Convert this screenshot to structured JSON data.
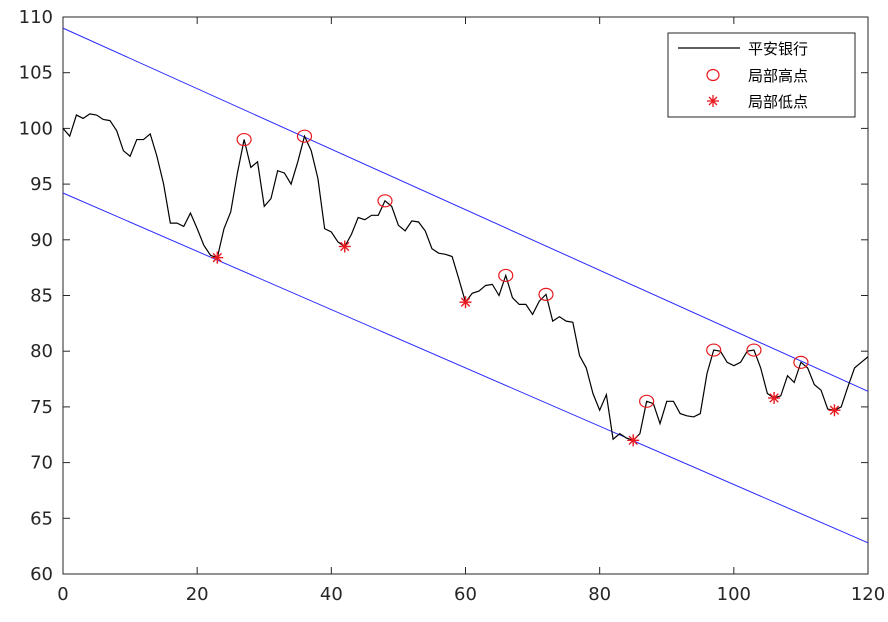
{
  "chart_data": {
    "type": "line",
    "title": "",
    "xlabel": "",
    "ylabel": "",
    "xlim": [
      0,
      120
    ],
    "ylim": [
      60,
      110
    ],
    "xticks": [
      0,
      20,
      40,
      60,
      80,
      100,
      120
    ],
    "yticks": [
      60,
      65,
      70,
      75,
      80,
      85,
      90,
      95,
      100,
      105,
      110
    ],
    "grid": false,
    "legend_position": "top-right",
    "legend": [
      "平安银行",
      "局部高点",
      "局部低点"
    ],
    "colors": {
      "price": "#000000",
      "markers": "#e8181e",
      "channel": "#2a2aff"
    },
    "series": [
      {
        "name": "平安银行",
        "values": [
          100,
          99.3,
          101.2,
          100.9,
          101.3,
          101.2,
          100.8,
          100.7,
          99.8,
          98,
          97.5,
          99,
          99,
          99.5,
          97.5,
          95,
          91.5,
          91.5,
          91.2,
          92.4,
          91,
          89.5,
          88.6,
          88.4,
          91,
          92.5,
          96,
          99,
          96.5,
          97,
          93,
          93.7,
          96.2,
          96,
          95,
          97,
          99.3,
          98,
          95.5,
          91,
          90.7,
          89.8,
          89.4,
          90.5,
          92,
          91.8,
          92.2,
          92.2,
          93.5,
          93,
          91.3,
          90.8,
          91.7,
          91.6,
          90.8,
          89.2,
          88.8,
          88.7,
          88.5,
          86.5,
          84.4,
          85.2,
          85.4,
          85.9,
          86,
          85,
          86.8,
          84.8,
          84.2,
          84.2,
          83.3,
          84.5,
          85.1,
          82.7,
          83.1,
          82.7,
          82.6,
          79.6,
          78.5,
          76.2,
          74.7,
          76.1,
          72.1,
          72.6,
          72.2,
          72,
          72.6,
          75.5,
          75.3,
          73.5,
          75.5,
          75.5,
          74.4,
          74.2,
          74.1,
          74.4,
          78,
          80.1,
          80,
          79,
          78.7,
          79,
          80,
          80.1,
          78.5,
          76.2,
          75.8,
          76,
          77.8,
          77.2,
          79,
          78.5,
          77,
          76.5,
          74.8,
          74.7,
          75,
          76.8,
          78.5,
          79,
          79.5
        ]
      },
      {
        "name": "局部高点",
        "x": [
          27,
          36,
          48,
          66,
          72,
          87,
          97,
          103,
          110
        ],
        "y": [
          99,
          99.3,
          93.5,
          86.8,
          85.1,
          75.5,
          80.1,
          80.1,
          79
        ]
      },
      {
        "name": "局部低点",
        "x": [
          23,
          42,
          60,
          85,
          106,
          115
        ],
        "y": [
          88.4,
          89.4,
          84.4,
          72,
          75.8,
          74.7
        ]
      }
    ],
    "channel_lines": [
      {
        "x": [
          0,
          120
        ],
        "y": [
          109,
          76.4
        ]
      },
      {
        "x": [
          0,
          120
        ],
        "y": [
          94.2,
          62.8
        ]
      }
    ]
  }
}
